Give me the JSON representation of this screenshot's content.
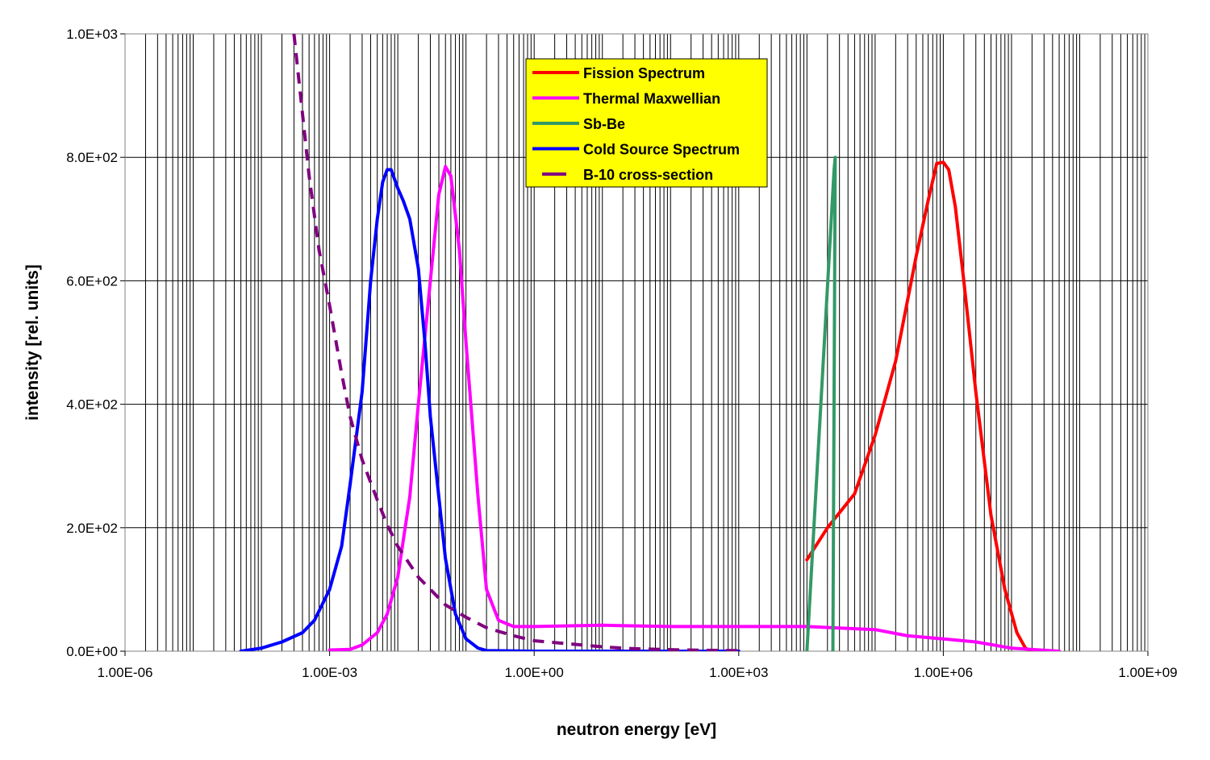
{
  "chart_data": {
    "type": "line",
    "title": "",
    "xlabel": "neutron energy [eV]",
    "ylabel": "intensity [rel. units]",
    "x_scale": "log",
    "xlim": [
      1e-06,
      1000000000.0
    ],
    "ylim": [
      0,
      1000
    ],
    "x_tick_labels": [
      "1.00E-06",
      "1.00E-03",
      "1.00E+00",
      "1.00E+03",
      "1.00E+06",
      "1.00E+09"
    ],
    "y_tick_labels": [
      "0.0E+00",
      "2.0E+02",
      "4.0E+02",
      "6.0E+02",
      "8.0E+02",
      "1.0E+03"
    ],
    "grid": true,
    "legend_position": "top-center",
    "legend_background": "#ffff00",
    "series": [
      {
        "name": "Fission Spectrum",
        "color": "#ff0000",
        "style": "solid",
        "points": [
          [
            10000,
            148
          ],
          [
            20000,
            200
          ],
          [
            50000,
            255
          ],
          [
            100000,
            350
          ],
          [
            200000,
            470
          ],
          [
            400000,
            640
          ],
          [
            600000,
            730
          ],
          [
            800000,
            790
          ],
          [
            1000000,
            792
          ],
          [
            1200000,
            780
          ],
          [
            1500000,
            720
          ],
          [
            2000000,
            600
          ],
          [
            3000000,
            420
          ],
          [
            5000000,
            220
          ],
          [
            8000000,
            100
          ],
          [
            12000000,
            30
          ],
          [
            16000000,
            5
          ],
          [
            20000000,
            0
          ]
        ]
      },
      {
        "name": "Thermal Maxwellian",
        "color": "#ff00ff",
        "style": "solid",
        "points": [
          [
            0.001,
            2
          ],
          [
            0.002,
            3
          ],
          [
            0.003,
            10
          ],
          [
            0.005,
            30
          ],
          [
            0.007,
            60
          ],
          [
            0.01,
            120
          ],
          [
            0.015,
            250
          ],
          [
            0.02,
            400
          ],
          [
            0.03,
            600
          ],
          [
            0.04,
            740
          ],
          [
            0.05,
            785
          ],
          [
            0.06,
            770
          ],
          [
            0.08,
            650
          ],
          [
            0.1,
            500
          ],
          [
            0.15,
            250
          ],
          [
            0.2,
            100
          ],
          [
            0.3,
            50
          ],
          [
            0.5,
            40
          ],
          [
            1,
            40
          ],
          [
            10,
            42
          ],
          [
            100,
            40
          ],
          [
            1000,
            40
          ],
          [
            10000,
            40
          ],
          [
            100000,
            35
          ],
          [
            300000,
            25
          ],
          [
            1000000,
            20
          ],
          [
            3000000,
            15
          ],
          [
            10000000,
            5
          ],
          [
            50000000,
            0
          ]
        ]
      },
      {
        "name": "Sb-Be",
        "color": "#339966",
        "style": "solid",
        "points": [
          [
            10000,
            0
          ],
          [
            25000,
            780
          ],
          [
            26000,
            800
          ],
          [
            24000,
            0
          ]
        ]
      },
      {
        "name": "Cold Source Spectrum",
        "color": "#0000ff",
        "style": "solid",
        "points": [
          [
            5e-05,
            0
          ],
          [
            0.0001,
            5
          ],
          [
            0.0002,
            15
          ],
          [
            0.0004,
            30
          ],
          [
            0.0006,
            50
          ],
          [
            0.001,
            100
          ],
          [
            0.0015,
            170
          ],
          [
            0.002,
            270
          ],
          [
            0.003,
            420
          ],
          [
            0.004,
            600
          ],
          [
            0.005,
            700
          ],
          [
            0.006,
            760
          ],
          [
            0.007,
            780
          ],
          [
            0.008,
            780
          ],
          [
            0.01,
            750
          ],
          [
            0.012,
            730
          ],
          [
            0.015,
            700
          ],
          [
            0.02,
            620
          ],
          [
            0.025,
            500
          ],
          [
            0.03,
            380
          ],
          [
            0.04,
            250
          ],
          [
            0.05,
            150
          ],
          [
            0.07,
            60
          ],
          [
            0.1,
            20
          ],
          [
            0.15,
            5
          ],
          [
            0.2,
            1
          ],
          [
            1,
            0
          ],
          [
            1000,
            0
          ]
        ]
      },
      {
        "name": "B-10 cross-section",
        "color": "#800080",
        "style": "dashed",
        "points": [
          [
            0.0003,
            1000
          ],
          [
            0.0005,
            770
          ],
          [
            0.0007,
            650
          ],
          [
            0.001,
            560
          ],
          [
            0.0015,
            450
          ],
          [
            0.002,
            380
          ],
          [
            0.003,
            310
          ],
          [
            0.005,
            245
          ],
          [
            0.007,
            205
          ],
          [
            0.01,
            170
          ],
          [
            0.02,
            120
          ],
          [
            0.05,
            75
          ],
          [
            0.1,
            55
          ],
          [
            0.2,
            38
          ],
          [
            0.5,
            25
          ],
          [
            1,
            17
          ],
          [
            5,
            10
          ],
          [
            10,
            7
          ],
          [
            20,
            5
          ],
          [
            30,
            4
          ],
          [
            100,
            2.5
          ],
          [
            300,
            1.5
          ],
          [
            1000,
            1
          ]
        ]
      }
    ]
  }
}
